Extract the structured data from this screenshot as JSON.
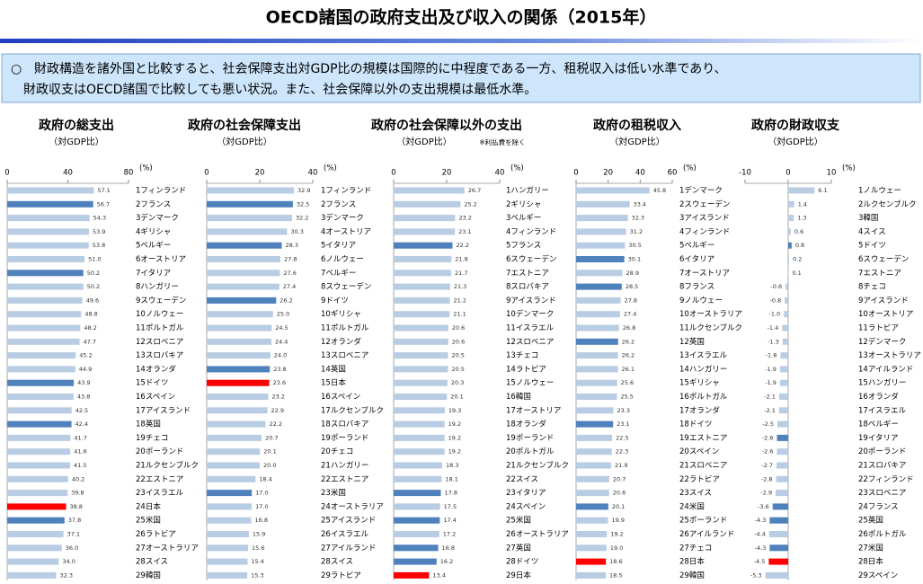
{
  "title": "OECD諸国の政府支出及び収入の関係（2015年）",
  "summary": {
    "bullet": "○",
    "lines": [
      "財政構造を諸外国と比較すると、社会保障支出対GDP比の規模は国際的に中程度である一方、租税収入は低い水準であり、",
      "財政収支はOECD諸国で比較しても悪い状況。また、社会保障以外の支出規模は最低水準。"
    ]
  },
  "chart_data": [
    {
      "type": "bar",
      "title": "政府の総支出",
      "subtitle": "（対GDP比）",
      "unit": "(%)",
      "xlim": [
        0,
        80
      ],
      "xticks": [
        0,
        40,
        80
      ],
      "categories": [
        "1フィンランド",
        "2フランス",
        "3デンマーク",
        "4ギリシャ",
        "5ベルギー",
        "6オーストリア",
        "7イタリア",
        "8ハンガリー",
        "9スウェーデン",
        "10ノルウェー",
        "11ポルトガル",
        "12スロベニア",
        "13スロバキア",
        "14オランダ",
        "15ドイツ",
        "16スペイン",
        "17アイスランド",
        "18英国",
        "19チェコ",
        "20ポーランド",
        "21ルクセンブルク",
        "22エストニア",
        "23イスラエル",
        "24日本",
        "25米国",
        "26ラトビア",
        "27オーストラリア",
        "28スイス",
        "29韓国"
      ],
      "values": [
        57.1,
        56.7,
        54.3,
        53.9,
        53.8,
        51.0,
        50.2,
        50.2,
        49.6,
        48.8,
        48.2,
        47.7,
        45.2,
        44.9,
        43.9,
        43.8,
        42.5,
        42.4,
        41.7,
        41.6,
        41.5,
        40.2,
        39.8,
        38.8,
        37.8,
        37.1,
        36.0,
        34.0,
        32.3
      ],
      "value_labels": [
        "57.1",
        "56.7",
        "54.3",
        "53.9",
        "53.8",
        "51.0",
        "50.2",
        "50.2",
        "49.6",
        "48.8",
        "48.2",
        "47.7",
        "45.2",
        "44.9",
        "43.9",
        "43.8",
        "42.5",
        "42.4",
        "41.7",
        "41.6",
        "41.5",
        "40.2",
        "39.8",
        "38.8",
        "37.8",
        "37.1",
        "36.0",
        "34.0",
        "32.3"
      ],
      "colors": [
        "#b8cce4",
        "#4f81bd",
        "#b8cce4",
        "#b8cce4",
        "#b8cce4",
        "#b8cce4",
        "#4f81bd",
        "#b8cce4",
        "#b8cce4",
        "#b8cce4",
        "#b8cce4",
        "#b8cce4",
        "#b8cce4",
        "#b8cce4",
        "#4f81bd",
        "#b8cce4",
        "#b8cce4",
        "#4f81bd",
        "#b8cce4",
        "#b8cce4",
        "#b8cce4",
        "#b8cce4",
        "#b8cce4",
        "#ff0000",
        "#4f81bd",
        "#b8cce4",
        "#b8cce4",
        "#b8cce4",
        "#b8cce4"
      ]
    },
    {
      "type": "bar",
      "title": "政府の社会保障支出",
      "subtitle": "（対GDP比）",
      "unit": "(%)",
      "xlim": [
        0,
        40
      ],
      "xticks": [
        0,
        20,
        40
      ],
      "categories": [
        "1フィンランド",
        "2フランス",
        "3デンマーク",
        "4オーストリア",
        "5イタリア",
        "6ノルウェー",
        "7ベルギー",
        "8スウェーデン",
        "9ドイツ",
        "10ギリシャ",
        "11ポルトガル",
        "12オランダ",
        "13スロベニア",
        "14英国",
        "15日本",
        "16スペイン",
        "17ルクセンブルク",
        "18スロバキア",
        "19ポーランド",
        "20チェコ",
        "21ハンガリー",
        "22エストニア",
        "23米国",
        "24オーストラリア",
        "25アイスランド",
        "26イスラエル",
        "27アイルランド",
        "28スイス",
        "29ラトビア"
      ],
      "values": [
        32.9,
        32.5,
        32.2,
        30.3,
        28.3,
        27.8,
        27.6,
        27.4,
        26.2,
        25.0,
        24.5,
        24.4,
        24.0,
        23.8,
        23.6,
        23.2,
        22.9,
        22.2,
        20.7,
        20.1,
        20.0,
        18.4,
        17.0,
        17.0,
        16.8,
        15.9,
        15.6,
        15.4,
        15.3
      ],
      "value_labels": [
        "32.9",
        "32.5",
        "32.2",
        "30.3",
        "28.3",
        "27.8",
        "27.6",
        "27.4",
        "26.2",
        "25.0",
        "24.5",
        "24.4",
        "24.0",
        "23.8",
        "23.6",
        "23.2",
        "22.9",
        "22.2",
        "20.7",
        "20.1",
        "20.0",
        "18.4",
        "17.0",
        "17.0",
        "16.8",
        "15.9",
        "15.6",
        "15.4",
        "15.3"
      ],
      "colors": [
        "#b8cce4",
        "#4f81bd",
        "#b8cce4",
        "#b8cce4",
        "#4f81bd",
        "#b8cce4",
        "#b8cce4",
        "#b8cce4",
        "#4f81bd",
        "#b8cce4",
        "#b8cce4",
        "#b8cce4",
        "#b8cce4",
        "#4f81bd",
        "#ff0000",
        "#b8cce4",
        "#b8cce4",
        "#b8cce4",
        "#b8cce4",
        "#b8cce4",
        "#b8cce4",
        "#b8cce4",
        "#4f81bd",
        "#b8cce4",
        "#b8cce4",
        "#b8cce4",
        "#b8cce4",
        "#b8cce4",
        "#b8cce4"
      ]
    },
    {
      "type": "bar",
      "title": "政府の社会保障以外の支出",
      "subtitle": "（対GDP比）",
      "note": "※利払費を除く",
      "unit": "(%)",
      "xlim": [
        0,
        40
      ],
      "xticks": [
        0,
        20,
        40
      ],
      "categories": [
        "1ハンガリー",
        "2ギリシャ",
        "3ベルギー",
        "4フィンランド",
        "5フランス",
        "6スウェーデン",
        "7エストニア",
        "8スロバキア",
        "9アイスランド",
        "10デンマーク",
        "11イスラエル",
        "12スロベニア",
        "13チェコ",
        "14ラトビア",
        "15ノルウェー",
        "16韓国",
        "17オーストリア",
        "18オランダ",
        "19ポーランド",
        "20ポルトガル",
        "21ルクセンブルク",
        "22スイス",
        "23イタリア",
        "24スペイン",
        "25米国",
        "26オーストラリア",
        "27英国",
        "28ドイツ",
        "29日本"
      ],
      "values": [
        26.7,
        25.2,
        23.2,
        23.1,
        22.2,
        21.8,
        21.7,
        21.3,
        21.2,
        21.1,
        20.6,
        20.6,
        20.5,
        20.5,
        20.3,
        20.1,
        19.3,
        19.2,
        19.2,
        19.2,
        18.3,
        18.1,
        17.8,
        17.5,
        17.4,
        17.2,
        16.8,
        16.2,
        13.4
      ],
      "value_labels": [
        "26.7",
        "25.2",
        "23.2",
        "23.1",
        "22.2",
        "21.8",
        "21.7",
        "21.3",
        "21.2",
        "21.1",
        "20.6",
        "20.6",
        "20.5",
        "20.5",
        "20.3",
        "20.1",
        "19.3",
        "19.2",
        "19.2",
        "19.2",
        "18.3",
        "18.1",
        "17.8",
        "17.5",
        "17.4",
        "17.2",
        "16.8",
        "16.2",
        "13.4"
      ],
      "colors": [
        "#b8cce4",
        "#b8cce4",
        "#b8cce4",
        "#b8cce4",
        "#4f81bd",
        "#b8cce4",
        "#b8cce4",
        "#b8cce4",
        "#b8cce4",
        "#b8cce4",
        "#b8cce4",
        "#b8cce4",
        "#b8cce4",
        "#b8cce4",
        "#b8cce4",
        "#b8cce4",
        "#b8cce4",
        "#b8cce4",
        "#b8cce4",
        "#b8cce4",
        "#b8cce4",
        "#b8cce4",
        "#4f81bd",
        "#b8cce4",
        "#4f81bd",
        "#b8cce4",
        "#4f81bd",
        "#4f81bd",
        "#ff0000"
      ]
    },
    {
      "type": "bar",
      "title": "政府の租税収入",
      "subtitle": "（対GDP比）",
      "unit": "(%)",
      "xlim": [
        0,
        60
      ],
      "xticks": [
        0,
        20,
        40,
        60
      ],
      "categories": [
        "1デンマーク",
        "2スウェーデン",
        "3アイスランド",
        "4フィンランド",
        "5ベルギー",
        "6イタリア",
        "7オーストリア",
        "8フランス",
        "9ノルウェー",
        "10オーストラリア",
        "11ルクセンブルク",
        "12英国",
        "13イスラエル",
        "14ハンガリー",
        "15ギリシャ",
        "16ポルトガル",
        "17オランダ",
        "18ドイツ",
        "19エストニア",
        "20スペイン",
        "21スロベニア",
        "22ラトビア",
        "23スイス",
        "24米国",
        "25ポーランド",
        "26アイルランド",
        "27チェコ",
        "28日本",
        "29韓国"
      ],
      "values": [
        45.8,
        33.4,
        32.3,
        31.2,
        30.5,
        30.1,
        28.9,
        28.5,
        27.8,
        27.4,
        26.8,
        26.2,
        26.2,
        26.1,
        25.6,
        25.5,
        23.3,
        23.1,
        22.5,
        22.3,
        21.9,
        20.7,
        20.6,
        20.1,
        19.9,
        19.2,
        19.0,
        18.6,
        18.5
      ],
      "value_labels": [
        "45.8",
        "33.4",
        "32.3",
        "31.2",
        "30.5",
        "30.1",
        "28.9",
        "28.5",
        "27.8",
        "27.4",
        "26.8",
        "26.2",
        "26.2",
        "26.1",
        "25.6",
        "25.5",
        "23.3",
        "23.1",
        "22.5",
        "22.3",
        "21.9",
        "20.7",
        "20.6",
        "20.1",
        "19.9",
        "19.2",
        "19.0",
        "18.6",
        "18.5"
      ],
      "colors": [
        "#b8cce4",
        "#b8cce4",
        "#b8cce4",
        "#b8cce4",
        "#b8cce4",
        "#4f81bd",
        "#b8cce4",
        "#4f81bd",
        "#b8cce4",
        "#b8cce4",
        "#b8cce4",
        "#4f81bd",
        "#b8cce4",
        "#b8cce4",
        "#b8cce4",
        "#b8cce4",
        "#b8cce4",
        "#4f81bd",
        "#b8cce4",
        "#b8cce4",
        "#b8cce4",
        "#b8cce4",
        "#b8cce4",
        "#4f81bd",
        "#b8cce4",
        "#b8cce4",
        "#b8cce4",
        "#ff0000",
        "#b8cce4"
      ]
    },
    {
      "type": "bar",
      "title": "政府の財政収支",
      "subtitle": "（対GDP比）",
      "unit": "(%)",
      "xlim": [
        -10,
        10
      ],
      "xticks": [
        -10,
        0,
        10
      ],
      "categories": [
        "1ノルウェー",
        "2ルクセンブルク",
        "3韓国",
        "4スイス",
        "5ドイツ",
        "6スウェーデン",
        "7エストニア",
        "8チェコ",
        "9アイスランド",
        "10オーストリア",
        "11ラトビア",
        "12デンマーク",
        "13オーストラリア",
        "14アイルランド",
        "15ハンガリー",
        "16オランダ",
        "17イスラエル",
        "18ベルギー",
        "19イタリア",
        "20ポーランド",
        "21スロバキア",
        "22フィンランド",
        "23スロベニア",
        "24フランス",
        "25英国",
        "26ポルトガル",
        "27米国",
        "28日本",
        "29スペイン"
      ],
      "values": [
        6.1,
        1.4,
        1.3,
        0.6,
        0.8,
        0.2,
        0.1,
        -0.6,
        -0.8,
        -1.0,
        -1.4,
        -1.3,
        -1.8,
        -1.9,
        -1.9,
        -2.1,
        -2.1,
        -2.5,
        -2.6,
        -2.6,
        -2.7,
        -2.8,
        -2.9,
        -3.6,
        -4.3,
        -4.4,
        -4.3,
        -4.5,
        -5.3
      ],
      "value_labels": [
        "6.1",
        "1.4",
        "1.3",
        "0.6",
        "0.8",
        "0.2",
        "0.1",
        "-0.6",
        "-0.8",
        "-1.0",
        "-1.4",
        "-1.3",
        "-1.8",
        "-1.9",
        "-1.9",
        "-2.1",
        "-2.1",
        "-2.5",
        "-2.6",
        "-2.6",
        "-2.7",
        "-2.8",
        "-2.9",
        "-3.6",
        "-4.3",
        "-4.4",
        "-4.3",
        "-4.5",
        "-5.3"
      ],
      "colors": [
        "#b8cce4",
        "#b8cce4",
        "#b8cce4",
        "#b8cce4",
        "#4f81bd",
        "#b8cce4",
        "#b8cce4",
        "#b8cce4",
        "#b8cce4",
        "#b8cce4",
        "#b8cce4",
        "#b8cce4",
        "#b8cce4",
        "#b8cce4",
        "#b8cce4",
        "#b8cce4",
        "#b8cce4",
        "#b8cce4",
        "#4f81bd",
        "#b8cce4",
        "#b8cce4",
        "#b8cce4",
        "#b8cce4",
        "#4f81bd",
        "#4f81bd",
        "#b8cce4",
        "#4f81bd",
        "#ff0000",
        "#b8cce4"
      ]
    }
  ]
}
